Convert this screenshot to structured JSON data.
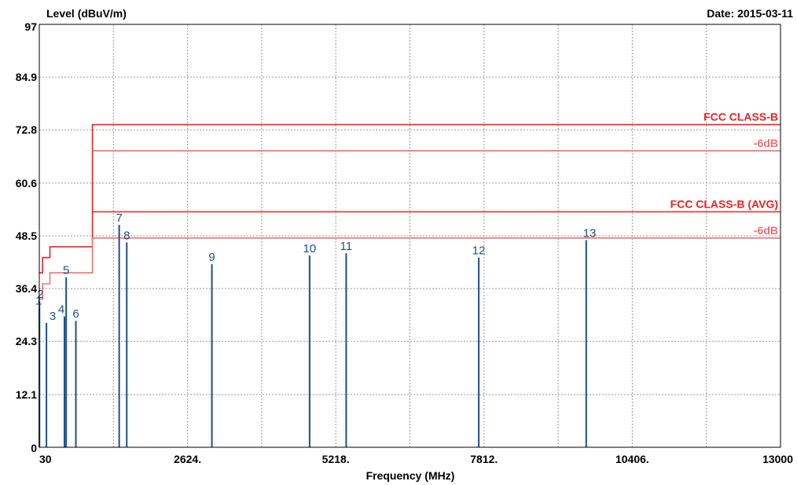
{
  "chart_data": {
    "type": "line",
    "ylabel": "Level (dBuV/m)",
    "xlabel": "Frequency (MHz)",
    "date": "Date: 2015-03-11",
    "xlim": [
      30,
      13000
    ],
    "ylim": [
      0,
      97
    ],
    "x_ticks": [
      {
        "value": 30,
        "label": "30"
      },
      {
        "value": 2624,
        "label": "2624."
      },
      {
        "value": 5218,
        "label": "5218."
      },
      {
        "value": 7812,
        "label": "7812."
      },
      {
        "value": 10406,
        "label": "10406."
      },
      {
        "value": 13000,
        "label": "13000"
      }
    ],
    "y_ticks": [
      {
        "value": 0,
        "label": "0"
      },
      {
        "value": 12.1,
        "label": "12.1"
      },
      {
        "value": 24.3,
        "label": "24.3"
      },
      {
        "value": 36.4,
        "label": "36.4"
      },
      {
        "value": 48.5,
        "label": "48.5"
      },
      {
        "value": 60.6,
        "label": "60.6"
      },
      {
        "value": 72.8,
        "label": "72.8"
      },
      {
        "value": 84.9,
        "label": "84.9"
      },
      {
        "value": 97,
        "label": "97"
      }
    ],
    "grid": true,
    "limit_lines": [
      {
        "name": "FCC CLASS-B",
        "color": "#ee2222",
        "label": "FCC CLASS-B",
        "points": [
          [
            30,
            40.0
          ],
          [
            88,
            40.0
          ],
          [
            88,
            43.5
          ],
          [
            216,
            43.5
          ],
          [
            216,
            46.0
          ],
          [
            960,
            46.0
          ],
          [
            960,
            74.0
          ],
          [
            13000,
            74.0
          ]
        ]
      },
      {
        "name": "-6dB",
        "color": "#f27070",
        "label": "-6dB",
        "points": [
          [
            960,
            68.0
          ],
          [
            13000,
            68.0
          ]
        ]
      },
      {
        "name": "FCC CLASS-B (AVG)",
        "color": "#ee2222",
        "label": "FCC CLASS-B (AVG)",
        "points": [
          [
            960,
            54.0
          ],
          [
            13000,
            54.0
          ]
        ]
      },
      {
        "name": "-6dB",
        "color": "#f27070",
        "label": "-6dB",
        "points": [
          [
            30,
            34.0
          ],
          [
            88,
            34.0
          ],
          [
            88,
            37.5
          ],
          [
            216,
            37.5
          ],
          [
            216,
            40.0
          ],
          [
            960,
            40.0
          ],
          [
            960,
            48.0
          ],
          [
            13000,
            48.0
          ]
        ]
      }
    ],
    "marker_color": "#1f4e8c",
    "markers": [
      {
        "label": "1",
        "x": 30,
        "y": 32.0
      },
      {
        "label": "2",
        "x": 33,
        "y": 33.5
      },
      {
        "label": "3",
        "x": 155,
        "y": 28.5
      },
      {
        "label": "4",
        "x": 470,
        "y": 30.0
      },
      {
        "label": "5",
        "x": 500,
        "y": 39.0
      },
      {
        "label": "6",
        "x": 670,
        "y": 29.0
      },
      {
        "label": "7",
        "x": 1428,
        "y": 51.0
      },
      {
        "label": "8",
        "x": 1560,
        "y": 47.0
      },
      {
        "label": "9",
        "x": 3050,
        "y": 42.0
      },
      {
        "label": "10",
        "x": 4760,
        "y": 44.0
      },
      {
        "label": "11",
        "x": 5400,
        "y": 44.5
      },
      {
        "label": "12",
        "x": 7720,
        "y": 43.5
      },
      {
        "label": "13",
        "x": 9600,
        "y": 47.5
      }
    ]
  }
}
